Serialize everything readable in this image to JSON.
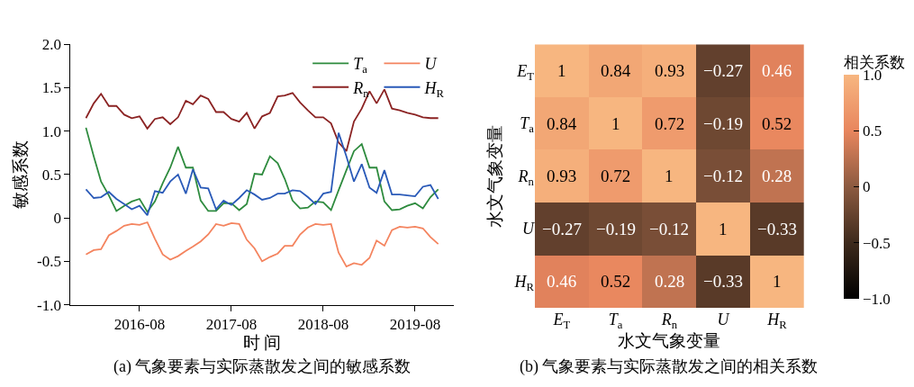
{
  "chart_data": [
    {
      "type": "line",
      "title": "(a) 气象要素与实际蒸散发之间的敏感系数",
      "xlabel": "时 间",
      "ylabel": "敏感系数",
      "x": [
        "2016-01",
        "2016-02",
        "2016-03",
        "2016-04",
        "2016-05",
        "2016-06",
        "2016-07",
        "2016-08",
        "2016-09",
        "2016-10",
        "2016-11",
        "2016-12",
        "2017-01",
        "2017-02",
        "2017-03",
        "2017-04",
        "2017-05",
        "2017-06",
        "2017-07",
        "2017-08",
        "2017-09",
        "2017-10",
        "2017-11",
        "2017-12",
        "2018-01",
        "2018-02",
        "2018-03",
        "2018-04",
        "2018-05",
        "2018-06",
        "2018-07",
        "2018-08",
        "2018-09",
        "2018-10",
        "2018-11",
        "2018-12",
        "2019-01",
        "2019-02",
        "2019-03",
        "2019-04",
        "2019-05",
        "2019-06",
        "2019-07",
        "2019-08",
        "2019-09",
        "2019-10",
        "2019-11"
      ],
      "series": [
        {
          "name": "T$_{a}$",
          "color": "#2e8b3e",
          "values": [
            1.04,
            0.71,
            0.42,
            0.26,
            0.08,
            0.14,
            0.19,
            0.22,
            0.07,
            0.19,
            0.4,
            0.58,
            0.82,
            0.58,
            0.58,
            0.2,
            0.08,
            0.08,
            0.17,
            0.17,
            0.09,
            0.16,
            0.51,
            0.5,
            0.71,
            0.63,
            0.45,
            0.2,
            0.11,
            0.12,
            0.19,
            0.18,
            0.09,
            0.32,
            0.55,
            0.77,
            0.85,
            0.58,
            0.58,
            0.19,
            0.09,
            0.1,
            0.14,
            0.17,
            0.11,
            0.24,
            0.33
          ]
        },
        {
          "name": "U",
          "color": "#f4845f",
          "values": [
            -0.42,
            -0.37,
            -0.36,
            -0.2,
            -0.15,
            -0.09,
            -0.07,
            -0.08,
            -0.05,
            -0.24,
            -0.42,
            -0.48,
            -0.44,
            -0.38,
            -0.33,
            -0.27,
            -0.19,
            -0.07,
            -0.09,
            -0.06,
            -0.07,
            -0.25,
            -0.35,
            -0.5,
            -0.45,
            -0.41,
            -0.32,
            -0.32,
            -0.19,
            -0.11,
            -0.07,
            -0.08,
            -0.07,
            -0.4,
            -0.56,
            -0.52,
            -0.54,
            -0.46,
            -0.26,
            -0.32,
            -0.14,
            -0.1,
            -0.11,
            -0.1,
            -0.12,
            -0.22,
            -0.3
          ]
        },
        {
          "name": "R$_{n}$",
          "color": "#8b2323",
          "values": [
            1.15,
            1.32,
            1.43,
            1.29,
            1.29,
            1.19,
            1.15,
            1.17,
            1.03,
            1.14,
            1.16,
            1.08,
            1.16,
            1.35,
            1.31,
            1.41,
            1.37,
            1.22,
            1.22,
            1.14,
            1.11,
            1.21,
            1.03,
            1.17,
            1.21,
            1.4,
            1.41,
            1.44,
            1.33,
            1.24,
            1.16,
            1.16,
            1.09,
            0.87,
            0.77,
            1.11,
            1.26,
            1.46,
            1.32,
            1.48,
            1.26,
            1.24,
            1.21,
            1.19,
            1.16,
            1.15,
            1.15
          ]
        },
        {
          "name": "H$_{R}$",
          "color": "#2a5ab8",
          "values": [
            0.33,
            0.23,
            0.24,
            0.3,
            0.22,
            0.16,
            0.1,
            0.14,
            0.03,
            0.31,
            0.29,
            0.42,
            0.5,
            0.28,
            0.56,
            0.35,
            0.34,
            0.1,
            0.2,
            0.15,
            0.23,
            0.32,
            0.27,
            0.21,
            0.23,
            0.28,
            0.28,
            0.32,
            0.31,
            0.24,
            0.16,
            0.28,
            0.3,
            0.98,
            0.71,
            0.42,
            0.62,
            0.35,
            0.29,
            0.55,
            0.27,
            0.27,
            0.26,
            0.25,
            0.36,
            0.38,
            0.22
          ]
        }
      ],
      "xlim": [
        "2015-11",
        "2020-01"
      ],
      "xticks": [
        {
          "value": "2016-08",
          "label": "2016-08"
        },
        {
          "value": "2017-08",
          "label": "2017-08"
        },
        {
          "value": "2018-08",
          "label": "2018-08"
        },
        {
          "value": "2019-08",
          "label": "2019-08"
        }
      ],
      "ylim": [
        -1,
        2
      ],
      "yticks": [
        {
          "value": -1,
          "label": "-1.0"
        },
        {
          "value": -0.5,
          "label": "-0.5"
        },
        {
          "value": 0,
          "label": "0"
        },
        {
          "value": 0.5,
          "label": "0.5"
        },
        {
          "value": 1,
          "label": "1.0"
        },
        {
          "value": 1.5,
          "label": "1.5"
        },
        {
          "value": 2,
          "label": "2.0"
        }
      ],
      "legend": "top right",
      "line_style": "solid",
      "marker": "none"
    },
    {
      "type": "heatmap",
      "title": "(b) 气象要素与实际蒸散发之间的相关系数",
      "xlabel": "水文气象变量",
      "ylabel": "水文气象变量",
      "clabel": "相关系数",
      "categories": [
        "E$_{T}$",
        "T$_{a}$",
        "R$_{n}$",
        "U",
        "H$_{R}$"
      ],
      "y_categories": [
        "E$_{T}$",
        "T$_{a}$",
        "R$_{n}$",
        "U",
        "H$_{R}$"
      ],
      "cells": [
        [
          1,
          0.84,
          0.93,
          -0.27,
          0.46
        ],
        [
          0.84,
          1,
          0.72,
          -0.19,
          0.52
        ],
        [
          0.93,
          0.72,
          1,
          -0.12,
          0.28
        ],
        [
          -0.27,
          -0.19,
          -0.12,
          1,
          -0.33
        ],
        [
          0.46,
          0.52,
          0.28,
          -0.33,
          1
        ]
      ],
      "cell_labels": [
        [
          "1",
          "0.84",
          "0.93",
          "−0.27",
          "0.46"
        ],
        [
          "0.84",
          "1",
          "0.72",
          "−0.19",
          "0.52"
        ],
        [
          "0.93",
          "0.72",
          "1",
          "−0.12",
          "0.28"
        ],
        [
          "−0.27",
          "−0.19",
          "−0.12",
          "1",
          "−0.33"
        ],
        [
          "0.46",
          "0.52",
          "0.28",
          "−0.33",
          "1"
        ]
      ],
      "clim": [
        -1,
        1
      ],
      "cticks": [
        {
          "value": -1,
          "label": "−1.0"
        },
        {
          "value": -0.5,
          "label": "−0.5"
        },
        {
          "value": 0,
          "label": "0"
        },
        {
          "value": 0.5,
          "label": "0.5"
        },
        {
          "value": 1,
          "label": "1.0"
        }
      ]
    }
  ]
}
